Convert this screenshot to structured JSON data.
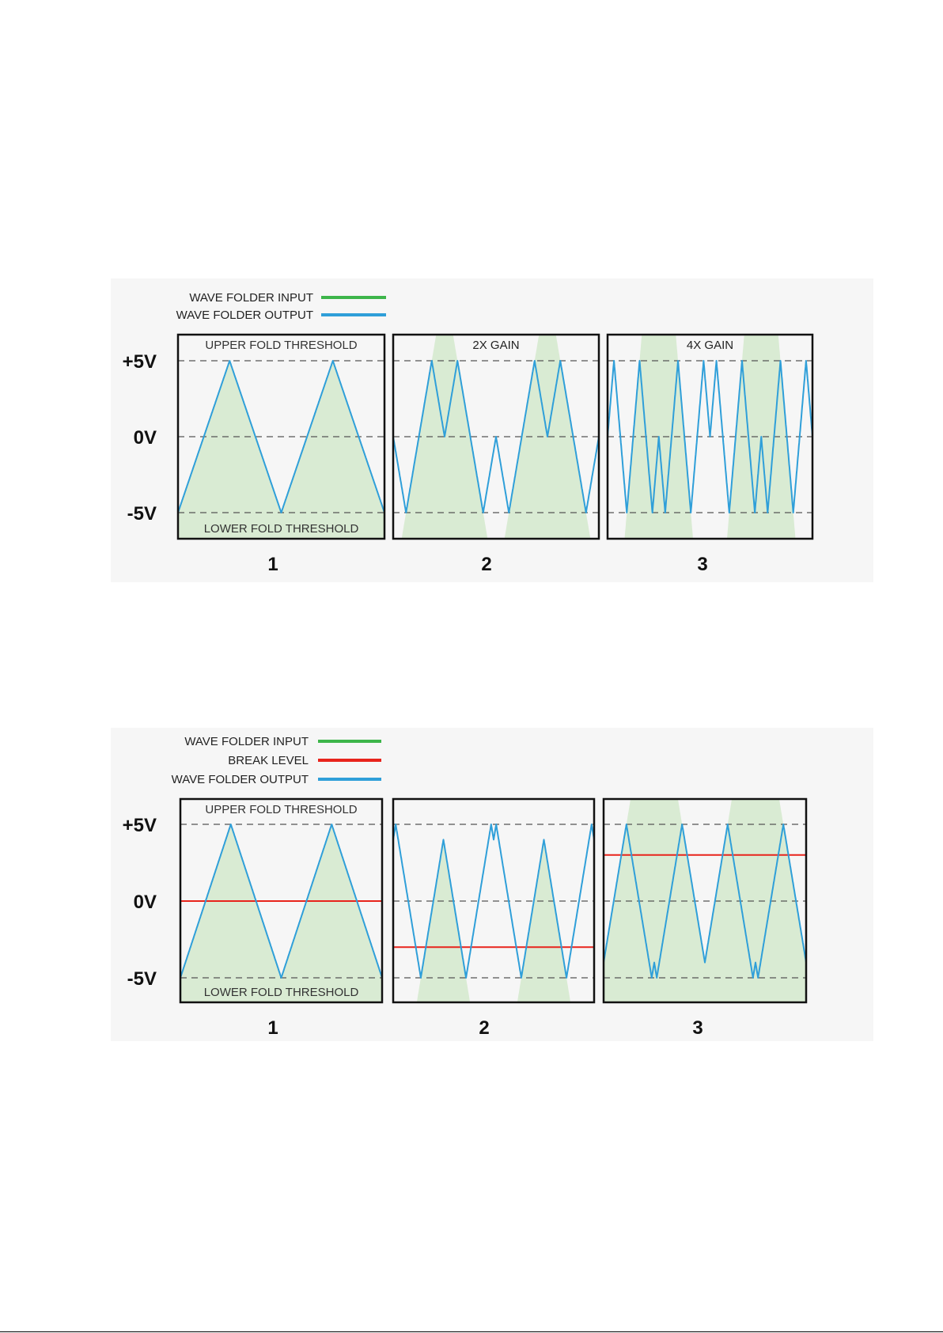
{
  "figures": [
    {
      "legend": [
        {
          "label": "WAVE FOLDER INPUT",
          "color": "#3db54a"
        },
        {
          "label": "WAVE FOLDER OUTPUT",
          "color": "#2f9fd9"
        }
      ],
      "y_labels": [
        "+5V",
        "0V",
        "-5V"
      ],
      "upper_threshold": "UPPER FOLD THRESHOLD",
      "lower_threshold": "LOWER FOLD THRESHOLD",
      "panels": [
        {
          "number": "1",
          "title": "",
          "gain": 1,
          "break_level": null
        },
        {
          "number": "2",
          "title": "2X GAIN",
          "gain": 2,
          "break_level": null
        },
        {
          "number": "3",
          "title": "4X GAIN",
          "gain": 4,
          "break_level": null
        }
      ]
    },
    {
      "legend": [
        {
          "label": "WAVE FOLDER INPUT",
          "color": "#3db54a"
        },
        {
          "label": "BREAK LEVEL",
          "color": "#e8241c"
        },
        {
          "label": "WAVE FOLDER OUTPUT",
          "color": "#2f9fd9"
        }
      ],
      "y_labels": [
        "+5V",
        "0V",
        "-5V"
      ],
      "upper_threshold": "UPPER FOLD THRESHOLD",
      "lower_threshold": "LOWER FOLD THRESHOLD",
      "panels": [
        {
          "number": "1",
          "title": "",
          "gain": 1,
          "offset": 0,
          "break_level": 0
        },
        {
          "number": "2",
          "title": "",
          "gain": 2,
          "offset": -6,
          "break_level": -3
        },
        {
          "number": "3",
          "title": "",
          "gain": 2,
          "offset": 6,
          "break_level": 3
        }
      ]
    }
  ],
  "colors": {
    "fill": "#d9ebd3",
    "output": "#2f9fd9",
    "break": "#e8241c",
    "border": "#111111",
    "dash": "#555555"
  }
}
